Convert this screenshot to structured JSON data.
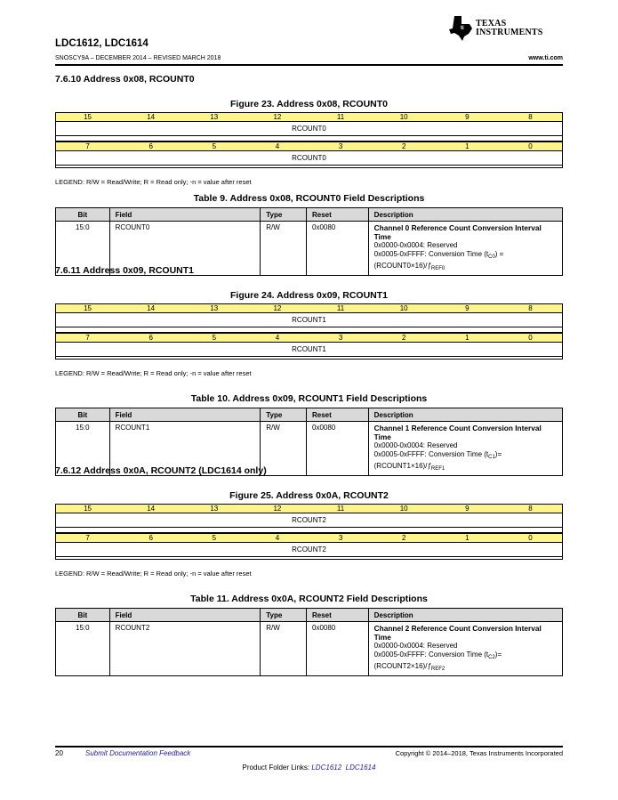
{
  "header": {
    "title": "LDC1612, LDC1614",
    "doc_id": "SNOSCY9A – DECEMBER 2014 – REVISED MARCH 2018",
    "url": "www.ti.com",
    "logo_text": [
      "Texas",
      "Instruments"
    ]
  },
  "bit_labels_high": [
    "15",
    "14",
    "13",
    "12",
    "11",
    "10",
    "9",
    "8"
  ],
  "bit_labels_low": [
    "7",
    "6",
    "5",
    "4",
    "3",
    "2",
    "1",
    "0"
  ],
  "legend": "LEGEND: R/W = Read/Write; R = Read only; -n = value after reset",
  "table_headers": [
    "Bit",
    "Field",
    "Type",
    "Reset",
    "Description"
  ],
  "sections": [
    {
      "heading": "7.6.10   Address 0x08, RCOUNT0",
      "figure": "Figure 23.  Address 0x08, RCOUNT0",
      "register_name": "RCOUNT0",
      "table_title": "Table 9. Address 0x08, RCOUNT0 Field Descriptions",
      "row": {
        "bit": "15:0",
        "field": "RCOUNT0",
        "type": "R/W",
        "reset": "0x0080",
        "desc_title": "Channel 0 Reference Count Conversion Interval Time",
        "desc_reserved": "0x0000-0x0004: Reserved",
        "conv_pre": "0x0005-0xFFFF: Conversion Time (t",
        "t_sub": "C0",
        "conv_mid": ") = (RCOUNT0×16)/",
        "f_sym": "ƒ",
        "f_sub": "REF0"
      }
    },
    {
      "heading": "7.6.11   Address 0x09, RCOUNT1",
      "figure": "Figure 24.  Address 0x09, RCOUNT1",
      "register_name": "RCOUNT1",
      "table_title": "Table 10. Address 0x09, RCOUNT1 Field Descriptions",
      "row": {
        "bit": "15:0",
        "field": "RCOUNT1",
        "type": "R/W",
        "reset": "0x0080",
        "desc_title": "Channel 1 Reference Count Conversion Interval Time",
        "desc_reserved": "0x0000-0x0004: Reserved",
        "conv_pre": "0x0005-0xFFFF: Conversion Time (t",
        "t_sub": "C1",
        "conv_mid": ")= (RCOUNT1×16)/",
        "f_sym": "ƒ",
        "f_sub": "REF1"
      }
    },
    {
      "heading": "7.6.12   Address 0x0A, RCOUNT2 (LDC1614 only)",
      "figure": "Figure 25.  Address 0x0A, RCOUNT2",
      "register_name": "RCOUNT2",
      "table_title": "Table 11. Address 0x0A, RCOUNT2 Field Descriptions",
      "row": {
        "bit": "15:0",
        "field": "RCOUNT2",
        "type": "R/W",
        "reset": "0x0080",
        "desc_title": "Channel 2 Reference Count Conversion Interval Time",
        "desc_reserved": "0x0000-0x0004: Reserved",
        "conv_pre": "0x0005-0xFFFF: Conversion Time (t",
        "t_sub": "C2",
        "conv_mid": ")= (RCOUNT2×16)/",
        "f_sym": "ƒ",
        "f_sub": "REF2"
      }
    }
  ],
  "footer": {
    "page": "20",
    "feedback": "Submit Documentation Feedback",
    "copyright": "Copyright © 2014–2018, Texas Instruments Incorporated",
    "links_label": "Product Folder Links: ",
    "links": [
      "LDC1612",
      "LDC1614"
    ]
  }
}
